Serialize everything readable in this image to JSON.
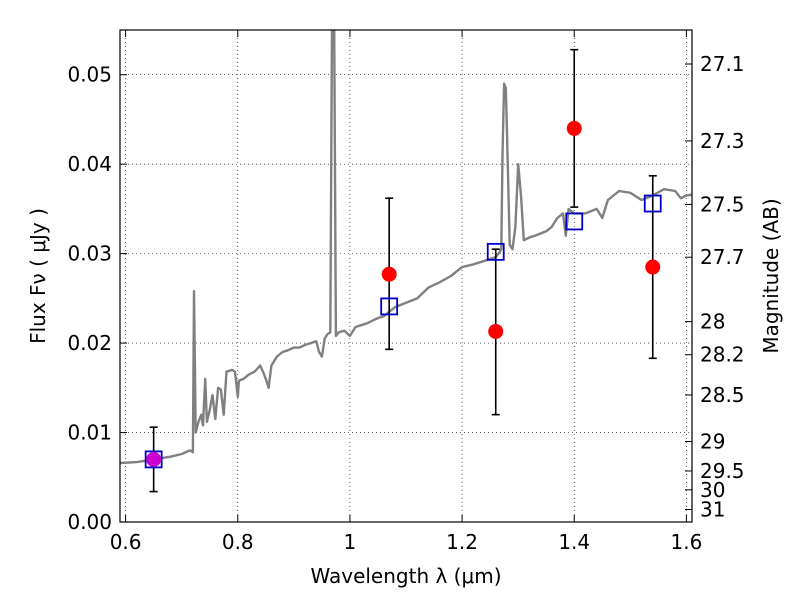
{
  "chart_data": {
    "type": "scatter",
    "xlabel": "Wavelength  λ (μm)",
    "ylabel": "Flux  Fν  ( μJy )",
    "ylabel_right": "Magnitude (AB)",
    "xlim": [
      0.59,
      1.61
    ],
    "ylim": [
      0.0,
      0.055
    ],
    "grid": true,
    "xticks": [
      {
        "value": 0.6,
        "label": "0.6"
      },
      {
        "value": 0.8,
        "label": "0.8"
      },
      {
        "value": 1.0,
        "label": "1"
      },
      {
        "value": 1.2,
        "label": "1.2"
      },
      {
        "value": 1.4,
        "label": "1.4"
      },
      {
        "value": 1.6,
        "label": "1.6"
      }
    ],
    "yticks": [
      {
        "value": 0.0,
        "label": "0.00"
      },
      {
        "value": 0.01,
        "label": "0.01"
      },
      {
        "value": 0.02,
        "label": "0.02"
      },
      {
        "value": 0.03,
        "label": "0.03"
      },
      {
        "value": 0.04,
        "label": "0.04"
      },
      {
        "value": 0.05,
        "label": "0.05"
      }
    ],
    "right_ticks": [
      {
        "label": "27.1",
        "flux": 0.0512
      },
      {
        "label": "27.3",
        "flux": 0.0426
      },
      {
        "label": "27.5",
        "flux": 0.0355
      },
      {
        "label": "27.7",
        "flux": 0.0296
      },
      {
        "label": "28",
        "flux": 0.0224
      },
      {
        "label": "28.2",
        "flux": 0.0187
      },
      {
        "label": "28.5",
        "flux": 0.0142
      },
      {
        "label": "29",
        "flux": 0.009
      },
      {
        "label": "29.5",
        "flux": 0.0057
      },
      {
        "label": "30",
        "flux": 0.0036
      },
      {
        "label": "31",
        "flux": 0.0014
      }
    ],
    "series": [
      {
        "kind": "model-spectrum",
        "color": "#808080",
        "points": [
          [
            0.59,
            0.0066
          ],
          [
            0.62,
            0.0067
          ],
          [
            0.65,
            0.007
          ],
          [
            0.68,
            0.0073
          ],
          [
            0.7,
            0.0076
          ],
          [
            0.715,
            0.008
          ],
          [
            0.72,
            0.0078
          ],
          [
            0.722,
            0.0258
          ],
          [
            0.725,
            0.01
          ],
          [
            0.73,
            0.0112
          ],
          [
            0.735,
            0.012
          ],
          [
            0.738,
            0.0108
          ],
          [
            0.742,
            0.016
          ],
          [
            0.745,
            0.0112
          ],
          [
            0.75,
            0.0125
          ],
          [
            0.755,
            0.0142
          ],
          [
            0.76,
            0.0115
          ],
          [
            0.765,
            0.015
          ],
          [
            0.77,
            0.0148
          ],
          [
            0.775,
            0.012
          ],
          [
            0.78,
            0.0168
          ],
          [
            0.79,
            0.017
          ],
          [
            0.795,
            0.0168
          ],
          [
            0.8,
            0.014
          ],
          [
            0.802,
            0.0158
          ],
          [
            0.81,
            0.016
          ],
          [
            0.82,
            0.0165
          ],
          [
            0.83,
            0.0168
          ],
          [
            0.84,
            0.0175
          ],
          [
            0.845,
            0.0168
          ],
          [
            0.85,
            0.016
          ],
          [
            0.855,
            0.015
          ],
          [
            0.86,
            0.0175
          ],
          [
            0.87,
            0.0185
          ],
          [
            0.88,
            0.019
          ],
          [
            0.89,
            0.0192
          ],
          [
            0.9,
            0.0195
          ],
          [
            0.91,
            0.0195
          ],
          [
            0.92,
            0.0198
          ],
          [
            0.93,
            0.02
          ],
          [
            0.94,
            0.0202
          ],
          [
            0.945,
            0.019
          ],
          [
            0.95,
            0.0185
          ],
          [
            0.955,
            0.0205
          ],
          [
            0.96,
            0.021
          ],
          [
            0.965,
            0.0212
          ],
          [
            0.968,
            0.0555
          ],
          [
            0.972,
            0.0555
          ],
          [
            0.975,
            0.0208
          ],
          [
            0.98,
            0.0212
          ],
          [
            0.99,
            0.0214
          ],
          [
            1.0,
            0.0208
          ],
          [
            1.01,
            0.0218
          ],
          [
            1.02,
            0.022
          ],
          [
            1.03,
            0.0222
          ],
          [
            1.04,
            0.0225
          ],
          [
            1.05,
            0.0228
          ],
          [
            1.06,
            0.023
          ],
          [
            1.08,
            0.024
          ],
          [
            1.1,
            0.0245
          ],
          [
            1.12,
            0.025
          ],
          [
            1.14,
            0.0262
          ],
          [
            1.16,
            0.0268
          ],
          [
            1.18,
            0.0275
          ],
          [
            1.2,
            0.0285
          ],
          [
            1.22,
            0.0288
          ],
          [
            1.24,
            0.0292
          ],
          [
            1.26,
            0.0296
          ],
          [
            1.265,
            0.03
          ],
          [
            1.27,
            0.0305
          ],
          [
            1.272,
            0.041
          ],
          [
            1.275,
            0.049
          ],
          [
            1.278,
            0.0485
          ],
          [
            1.28,
            0.044
          ],
          [
            1.285,
            0.031
          ],
          [
            1.29,
            0.0305
          ],
          [
            1.295,
            0.033
          ],
          [
            1.3,
            0.04
          ],
          [
            1.305,
            0.0365
          ],
          [
            1.31,
            0.0315
          ],
          [
            1.32,
            0.0318
          ],
          [
            1.33,
            0.032
          ],
          [
            1.35,
            0.0325
          ],
          [
            1.36,
            0.033
          ],
          [
            1.37,
            0.034
          ],
          [
            1.38,
            0.0345
          ],
          [
            1.385,
            0.032
          ],
          [
            1.39,
            0.035
          ],
          [
            1.4,
            0.0345
          ],
          [
            1.42,
            0.0345
          ],
          [
            1.44,
            0.035
          ],
          [
            1.45,
            0.034
          ],
          [
            1.46,
            0.036
          ],
          [
            1.48,
            0.037
          ],
          [
            1.5,
            0.0368
          ],
          [
            1.52,
            0.036
          ],
          [
            1.54,
            0.0365
          ],
          [
            1.56,
            0.0372
          ],
          [
            1.58,
            0.037
          ],
          [
            1.59,
            0.0362
          ],
          [
            1.6,
            0.0365
          ],
          [
            1.61,
            0.0366
          ]
        ]
      },
      {
        "kind": "model-photometry",
        "color": "#0000cc",
        "marker": "open-square",
        "points": [
          {
            "x": 0.65,
            "y": 0.007
          },
          {
            "x": 1.07,
            "y": 0.0241
          },
          {
            "x": 1.26,
            "y": 0.0302
          },
          {
            "x": 1.4,
            "y": 0.0336
          },
          {
            "x": 1.54,
            "y": 0.0356
          }
        ]
      },
      {
        "kind": "observed-photometry",
        "color": "#ff0000",
        "marker": "filled-circle",
        "points": [
          {
            "x": 0.65,
            "y": 0.007,
            "ylo": 0.0034,
            "yhi": 0.0106,
            "color": "#cc00cc"
          },
          {
            "x": 1.07,
            "y": 0.0277,
            "ylo": 0.0193,
            "yhi": 0.0362
          },
          {
            "x": 1.26,
            "y": 0.0213,
            "ylo": 0.012,
            "yhi": 0.0305
          },
          {
            "x": 1.4,
            "y": 0.044,
            "ylo": 0.0352,
            "yhi": 0.0528
          },
          {
            "x": 1.54,
            "y": 0.0285,
            "ylo": 0.0183,
            "yhi": 0.0387
          }
        ]
      }
    ]
  }
}
